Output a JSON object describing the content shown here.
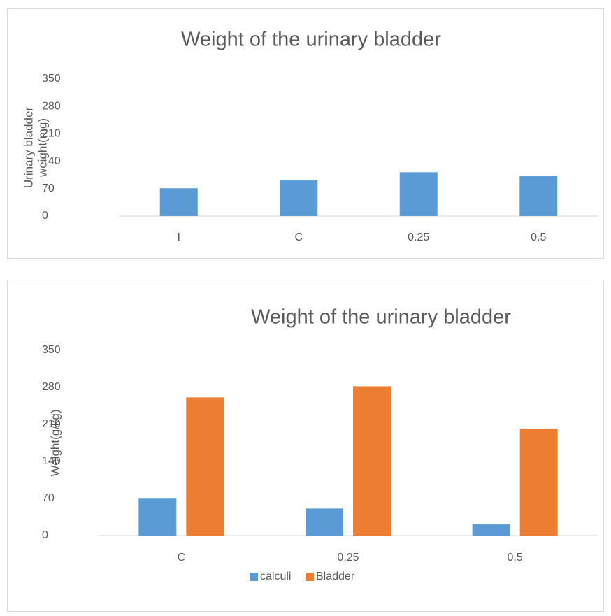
{
  "chart_data": [
    {
      "type": "bar",
      "title": "Weight of the urinary bladder",
      "ylabel_lines": [
        "Urinary bladder",
        "weight(mg)"
      ],
      "categories": [
        "I",
        "C",
        "0.25",
        "0.5"
      ],
      "series": [
        {
          "name": null,
          "color": "#5b9bd5",
          "values": [
            71,
            91,
            112,
            102
          ]
        }
      ],
      "ylim": [
        0,
        350
      ],
      "yticks": [
        0,
        70,
        140,
        210,
        280,
        350
      ],
      "grid": false,
      "legend": null
    },
    {
      "type": "bar",
      "title": "Weight of the urinary bladder",
      "ylabel_lines": [
        "Weight(g/kg)"
      ],
      "categories": [
        "C",
        "0.25",
        "0.5"
      ],
      "series": [
        {
          "name": "calculi",
          "color": "#5b9bd5",
          "values": [
            71,
            51,
            21
          ]
        },
        {
          "name": "Bladder",
          "color": "#ed7d31",
          "values": [
            261,
            282,
            202
          ]
        }
      ],
      "ylim": [
        0,
        350
      ],
      "yticks": [
        0,
        70,
        140,
        210,
        280,
        350
      ],
      "grid": false,
      "legend": "bottom"
    }
  ]
}
